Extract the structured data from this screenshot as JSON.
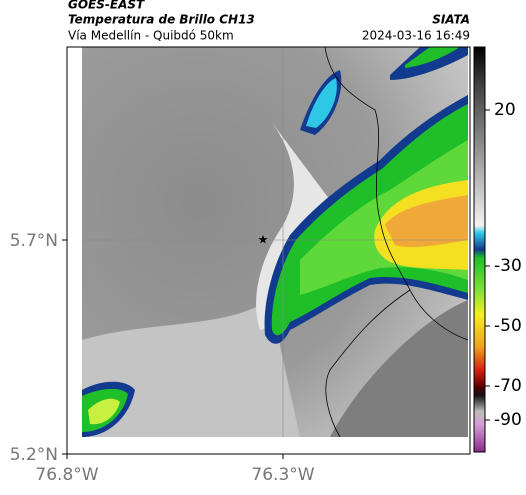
{
  "header": {
    "product": "GOES-EAST",
    "channel": "Temperatura de Brillo CH13",
    "region": "Vía Medellín - Quibdó 50km",
    "agency": "SIATA",
    "datetime": "2024-03-16 16:49"
  },
  "axes": {
    "latitudes": [
      "5.7°N",
      "5.2°N"
    ],
    "longitudes": [
      "76.8°W",
      "76.3°W"
    ]
  },
  "colorbar": {
    "labels": [
      "20",
      "-30",
      "-50",
      "-70",
      "-90"
    ]
  }
}
